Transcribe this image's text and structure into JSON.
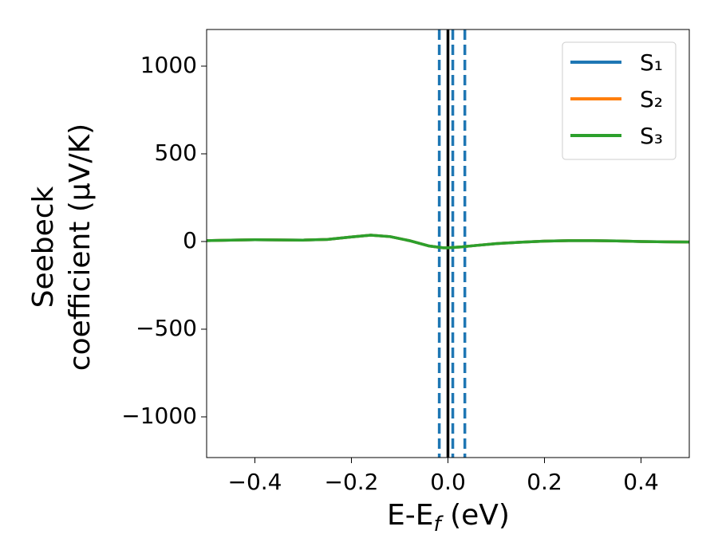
{
  "chart_data": {
    "type": "line",
    "xlabel": [
      "E-E",
      "f",
      " (eV)"
    ],
    "ylabel": [
      "Seebeck",
      "coefficient  (μV/K)"
    ],
    "x": [
      -0.5,
      -0.45,
      -0.4,
      -0.35,
      -0.3,
      -0.25,
      -0.2,
      -0.16,
      -0.12,
      -0.08,
      -0.04,
      -0.01,
      0.0,
      0.03,
      0.06,
      0.1,
      0.15,
      0.2,
      0.25,
      0.3,
      0.35,
      0.4,
      0.45,
      0.5
    ],
    "series": [
      {
        "name": "S₁",
        "color": "#1f77b4",
        "values": [
          5,
          8,
          10,
          9,
          8,
          12,
          26,
          36,
          28,
          5,
          -25,
          -36,
          -36,
          -30,
          -22,
          -12,
          -4,
          2,
          5,
          5,
          3,
          0,
          -2,
          -3
        ]
      },
      {
        "name": "S₂",
        "color": "#ff7f0e",
        "values": [
          5,
          8,
          10,
          9,
          8,
          12,
          26,
          36,
          28,
          5,
          -25,
          -36,
          -36,
          -30,
          -22,
          -12,
          -4,
          2,
          5,
          5,
          3,
          0,
          -2,
          -3
        ]
      },
      {
        "name": "S₃",
        "color": "#2ca02c",
        "values": [
          5,
          8,
          10,
          9,
          8,
          12,
          26,
          36,
          28,
          5,
          -25,
          -36,
          -36,
          -30,
          -22,
          -12,
          -4,
          2,
          5,
          5,
          3,
          0,
          -2,
          -3
        ]
      }
    ],
    "vlines": [
      {
        "x": -0.018,
        "color": "#1f77b4",
        "style": "dashed"
      },
      {
        "x": 0.01,
        "color": "#1f77b4",
        "style": "dashed"
      },
      {
        "x": 0.035,
        "color": "#1f77b4",
        "style": "dashed"
      },
      {
        "x": 0,
        "color": "#000000",
        "style": "solid"
      }
    ],
    "xlim": [
      -0.5,
      0.5
    ],
    "ylim": [
      -1232,
      1209
    ],
    "xticks": [
      {
        "value": -0.4,
        "label": "−0.4"
      },
      {
        "value": -0.2,
        "label": "−0.2"
      },
      {
        "value": 0,
        "label": "0.0"
      },
      0.2,
      0.4
    ],
    "yticks": [
      {
        "value": -1000,
        "label": "−1000"
      },
      {
        "value": -500,
        "label": "−500"
      },
      0,
      500,
      1000
    ],
    "grid": false,
    "legend": "upper right"
  }
}
